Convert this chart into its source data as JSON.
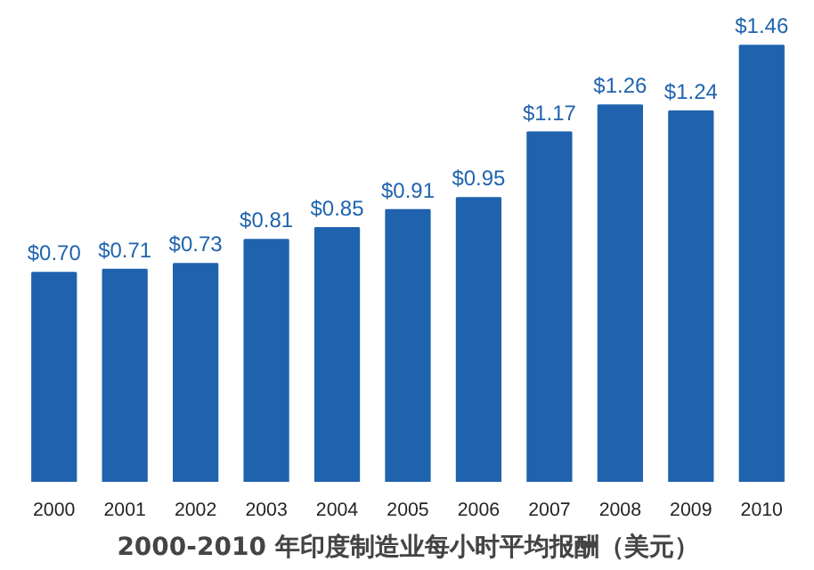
{
  "chart_data": {
    "type": "bar",
    "title": "2000-2010 年印度制造业每小时平均报酬（美元）",
    "categories": [
      "2000",
      "2001",
      "2002",
      "2003",
      "2004",
      "2005",
      "2006",
      "2007",
      "2008",
      "2009",
      "2010"
    ],
    "values": [
      0.7,
      0.71,
      0.73,
      0.81,
      0.85,
      0.91,
      0.95,
      1.17,
      1.26,
      1.24,
      1.46
    ],
    "value_labels": [
      "$0.70",
      "$0.71",
      "$0.73",
      "$0.81",
      "$0.85",
      "$0.91",
      "$0.95",
      "$1.17",
      "$1.26",
      "$1.24",
      "$1.46"
    ],
    "color": "#1f63ae",
    "grid": false
  }
}
